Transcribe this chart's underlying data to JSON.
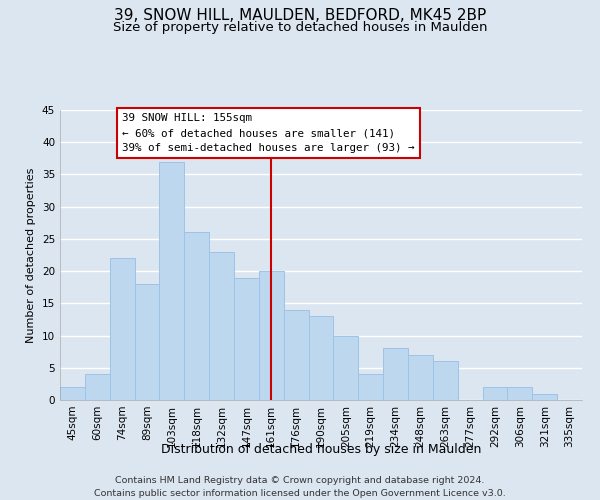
{
  "title1": "39, SNOW HILL, MAULDEN, BEDFORD, MK45 2BP",
  "title2": "Size of property relative to detached houses in Maulden",
  "xlabel": "Distribution of detached houses by size in Maulden",
  "ylabel": "Number of detached properties",
  "categories": [
    "45sqm",
    "60sqm",
    "74sqm",
    "89sqm",
    "103sqm",
    "118sqm",
    "132sqm",
    "147sqm",
    "161sqm",
    "176sqm",
    "190sqm",
    "205sqm",
    "219sqm",
    "234sqm",
    "248sqm",
    "263sqm",
    "277sqm",
    "292sqm",
    "306sqm",
    "321sqm",
    "335sqm"
  ],
  "values": [
    2,
    4,
    22,
    18,
    37,
    26,
    23,
    19,
    20,
    14,
    13,
    10,
    4,
    8,
    7,
    6,
    0,
    2,
    2,
    1,
    0
  ],
  "bar_color": "#bdd7ee",
  "bar_edge_color": "#9dc3e6",
  "vline_x": 8.0,
  "vline_color": "#cc0000",
  "annotation_title": "39 SNOW HILL: 155sqm",
  "annotation_line1": "← 60% of detached houses are smaller (141)",
  "annotation_line2": "39% of semi-detached houses are larger (93) →",
  "annotation_box_color": "#ffffff",
  "annotation_box_edge": "#cc0000",
  "ylim": [
    0,
    45
  ],
  "yticks": [
    0,
    5,
    10,
    15,
    20,
    25,
    30,
    35,
    40,
    45
  ],
  "footer1": "Contains HM Land Registry data © Crown copyright and database right 2024.",
  "footer2": "Contains public sector information licensed under the Open Government Licence v3.0.",
  "background_color": "#dce6f1",
  "plot_background": "#dce6f1",
  "grid_color": "#ffffff",
  "title1_fontsize": 11,
  "title2_fontsize": 9.5,
  "xlabel_fontsize": 9,
  "ylabel_fontsize": 8,
  "footer_fontsize": 6.8,
  "tick_fontsize": 7.5,
  "annot_fontsize": 7.8
}
